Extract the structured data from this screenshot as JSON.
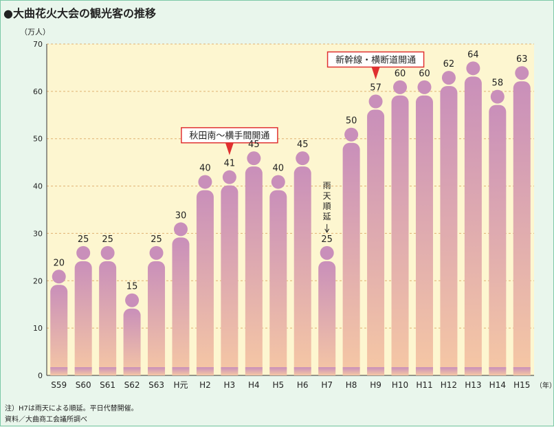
{
  "page": {
    "title": "●大曲花火大会の観光客の推移",
    "notes": [
      "注）H7は雨天による順延。平日代替開催。",
      "資料／大曲商工会議所調べ"
    ]
  },
  "chart_data": {
    "type": "bar",
    "title": "●大曲花火大会の観光客の推移",
    "xlabel": "（年）",
    "ylabel": "（万人）",
    "ylim": [
      0,
      70
    ],
    "yticks": [
      0,
      10,
      20,
      30,
      40,
      50,
      60,
      70
    ],
    "grid": true,
    "categories": [
      "S59",
      "S60",
      "S61",
      "S62",
      "S63",
      "H元",
      "H2",
      "H3",
      "H4",
      "H5",
      "H6",
      "H7",
      "H8",
      "H9",
      "H10",
      "H11",
      "H12",
      "H13",
      "H14",
      "H15"
    ],
    "values": [
      20,
      25,
      25,
      15,
      25,
      30,
      40,
      41,
      45,
      40,
      45,
      25,
      50,
      57,
      60,
      60,
      62,
      64,
      58,
      63
    ],
    "annotations": [
      {
        "category": "H3",
        "text": "秋田南〜横手間開通",
        "style": "callout"
      },
      {
        "category": "H9",
        "text": "新幹線・横断道開通",
        "style": "callout"
      },
      {
        "category": "H7",
        "text": "雨天順延",
        "style": "vertical-arrow"
      }
    ],
    "colors": {
      "bar_top": "#c98fba",
      "bar_bottom": "#f6c8a4",
      "plot_bg": "#fdf6d0",
      "callout_border": "#e03030",
      "grid": "#e0b070"
    }
  }
}
